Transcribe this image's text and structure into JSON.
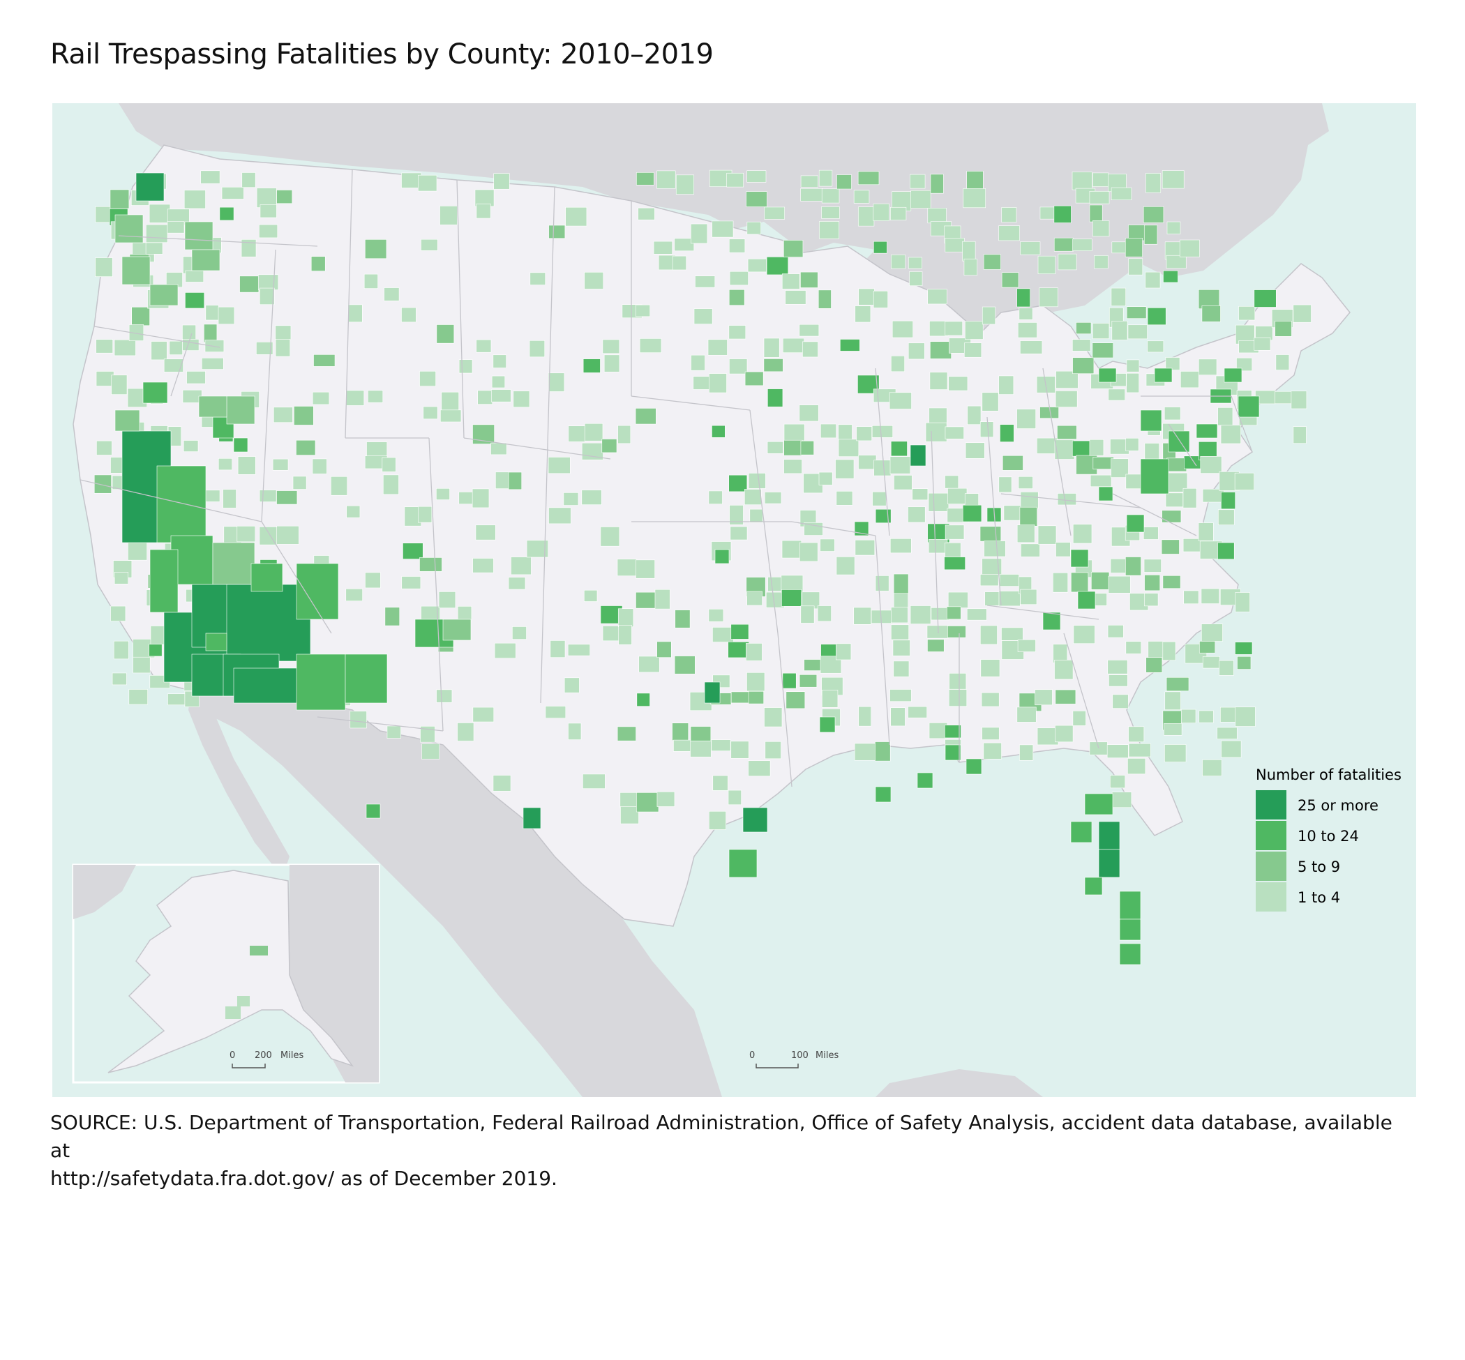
{
  "title": "Rail Trespassing Fatalities by County: 2010–2019",
  "legend": {
    "title": "Number of fatalities",
    "classes": [
      {
        "label": "25 or more",
        "color": "#259d58"
      },
      {
        "label": "10 to 24",
        "color": "#4fb862"
      },
      {
        "label": "5 to 9",
        "color": "#86c98e"
      },
      {
        "label": "1 to 4",
        "color": "#b9e0c0"
      }
    ]
  },
  "colors": {
    "water": "#dff1ee",
    "land_us": "#f2f1f5",
    "land_other": "#d8d8dc",
    "borders": "#c4c4ca",
    "zero": "#f2f1f5"
  },
  "scales": {
    "main": {
      "zero": "0",
      "value": "100",
      "unit": "Miles"
    },
    "inset": {
      "zero": "0",
      "value": "200",
      "unit": "Miles"
    }
  },
  "source": {
    "line1": "SOURCE: U.S. Department of Transportation, Federal Railroad Administration, Office of Safety Analysis, accident data database, available at",
    "line2": "http://safetydata.fra.dot.gov/ as of December 2019."
  }
}
